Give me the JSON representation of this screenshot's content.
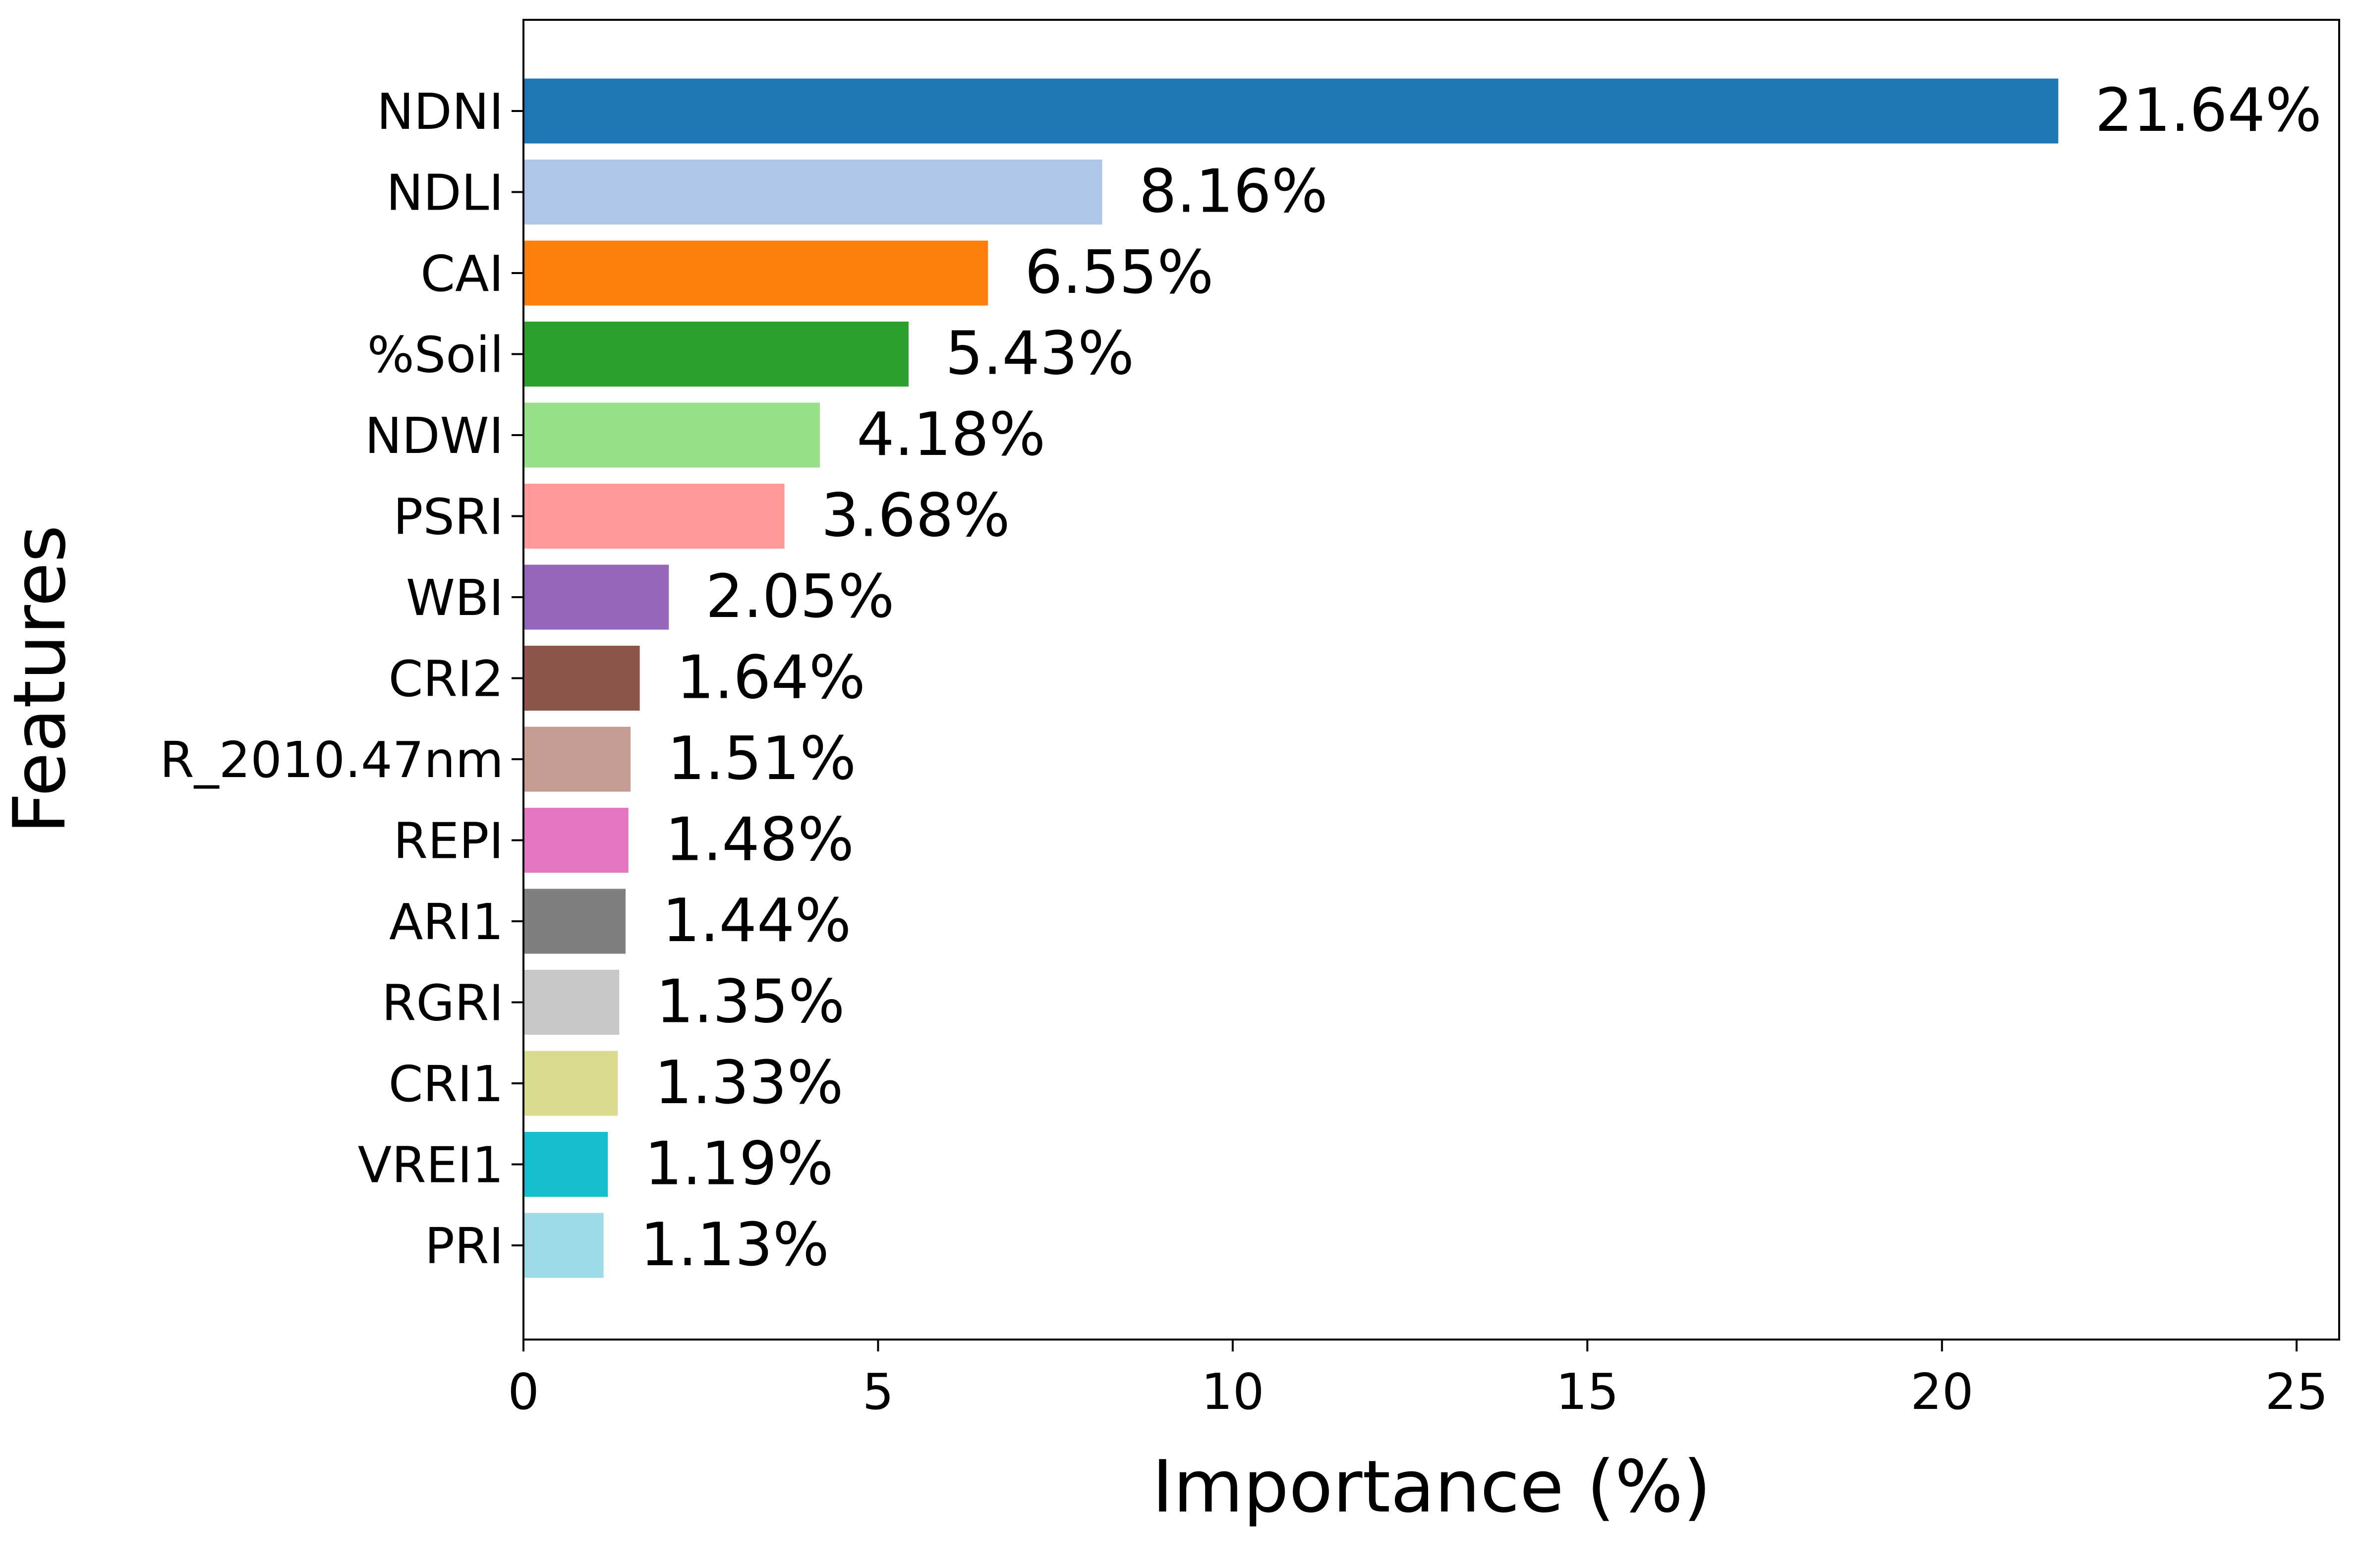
{
  "chart_data": {
    "type": "bar",
    "orientation": "horizontal",
    "xlabel": "Importance (%)",
    "ylabel": "Features",
    "xlim": [
      0,
      25.6
    ],
    "xticks": [
      0,
      5,
      10,
      15,
      20,
      25
    ],
    "grid": false,
    "legend": "none",
    "categories": [
      "NDNI",
      "NDLI",
      "CAI",
      "%Soil",
      "NDWI",
      "PSRI",
      "WBI",
      "CRI2",
      "R_2010.47nm",
      "REPI",
      "ARI1",
      "RGRI",
      "CRI1",
      "VREI1",
      "PRI"
    ],
    "values": [
      21.64,
      8.16,
      6.55,
      5.43,
      4.18,
      3.68,
      2.05,
      1.64,
      1.51,
      1.48,
      1.44,
      1.35,
      1.33,
      1.19,
      1.13
    ],
    "value_labels": [
      "21.64%",
      "8.16%",
      "6.55%",
      "5.43%",
      "4.18%",
      "3.68%",
      "2.05%",
      "1.64%",
      "1.51%",
      "1.48%",
      "1.44%",
      "1.35%",
      "1.33%",
      "1.19%",
      "1.13%"
    ],
    "colors": [
      "#1f77b4",
      "#aec7e8",
      "#ff7f0e",
      "#2ca02c",
      "#98df8a",
      "#ff9896",
      "#9467bd",
      "#8c564b",
      "#c49c94",
      "#e377c2",
      "#7f7f7f",
      "#c7c7c7",
      "#dbdb8d",
      "#17becf",
      "#9edae5"
    ]
  }
}
